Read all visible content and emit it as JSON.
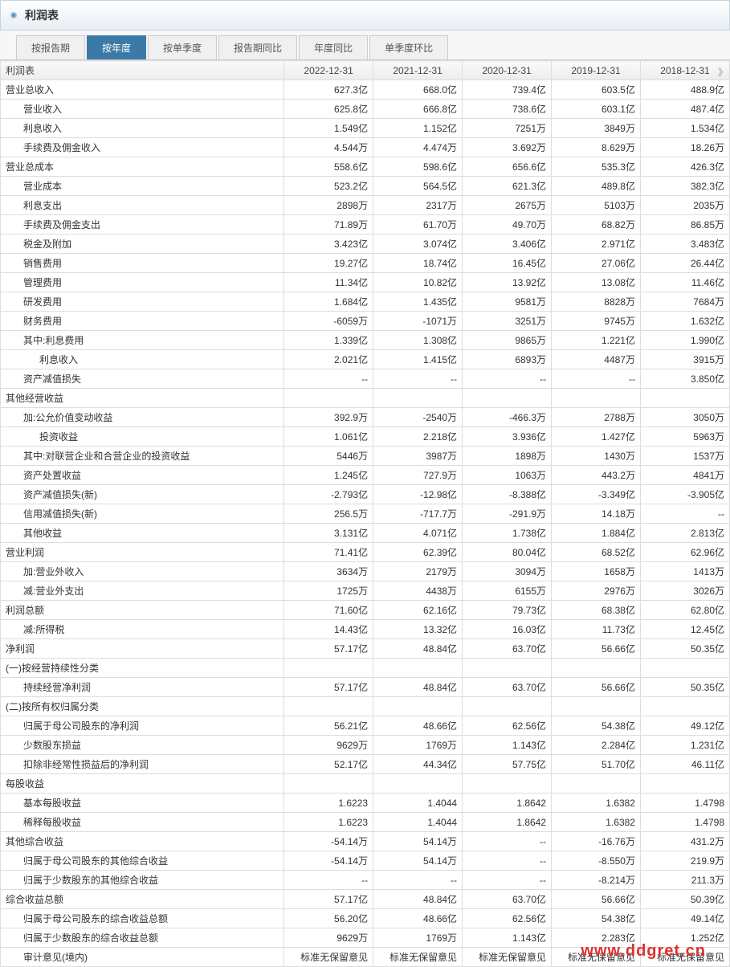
{
  "header": {
    "title": "利润表"
  },
  "tabs": [
    {
      "label": "按报告期",
      "active": false
    },
    {
      "label": "按年度",
      "active": true
    },
    {
      "label": "按单季度",
      "active": false
    },
    {
      "label": "报告期同比",
      "active": false
    },
    {
      "label": "年度同比",
      "active": false
    },
    {
      "label": "单季度环比",
      "active": false
    }
  ],
  "table": {
    "corner": "利润表",
    "columns": [
      "2022-12-31",
      "2021-12-31",
      "2020-12-31",
      "2019-12-31",
      "2018-12-31"
    ],
    "col_width_label": 350,
    "col_width_data": 110,
    "header_bg_gradient": [
      "#fafafa",
      "#ececec"
    ],
    "border_color": "#dddddd",
    "rows": [
      {
        "label": "营业总收入",
        "indent": 0,
        "vals": [
          "627.3亿",
          "668.0亿",
          "739.4亿",
          "603.5亿",
          "488.9亿"
        ]
      },
      {
        "label": "营业收入",
        "indent": 1,
        "vals": [
          "625.8亿",
          "666.8亿",
          "738.6亿",
          "603.1亿",
          "487.4亿"
        ]
      },
      {
        "label": "利息收入",
        "indent": 1,
        "vals": [
          "1.549亿",
          "1.152亿",
          "7251万",
          "3849万",
          "1.534亿"
        ]
      },
      {
        "label": "手续费及佣金收入",
        "indent": 1,
        "vals": [
          "4.544万",
          "4.474万",
          "3.692万",
          "8.629万",
          "18.26万"
        ]
      },
      {
        "label": "营业总成本",
        "indent": 0,
        "vals": [
          "558.6亿",
          "598.6亿",
          "656.6亿",
          "535.3亿",
          "426.3亿"
        ]
      },
      {
        "label": "营业成本",
        "indent": 1,
        "vals": [
          "523.2亿",
          "564.5亿",
          "621.3亿",
          "489.8亿",
          "382.3亿"
        ]
      },
      {
        "label": "利息支出",
        "indent": 1,
        "vals": [
          "2898万",
          "2317万",
          "2675万",
          "5103万",
          "2035万"
        ]
      },
      {
        "label": "手续费及佣金支出",
        "indent": 1,
        "vals": [
          "71.89万",
          "61.70万",
          "49.70万",
          "68.82万",
          "86.85万"
        ]
      },
      {
        "label": "税金及附加",
        "indent": 1,
        "vals": [
          "3.423亿",
          "3.074亿",
          "3.406亿",
          "2.971亿",
          "3.483亿"
        ]
      },
      {
        "label": "销售费用",
        "indent": 1,
        "vals": [
          "19.27亿",
          "18.74亿",
          "16.45亿",
          "27.06亿",
          "26.44亿"
        ]
      },
      {
        "label": "管理费用",
        "indent": 1,
        "vals": [
          "11.34亿",
          "10.82亿",
          "13.92亿",
          "13.08亿",
          "11.46亿"
        ]
      },
      {
        "label": "研发费用",
        "indent": 1,
        "vals": [
          "1.684亿",
          "1.435亿",
          "9581万",
          "8828万",
          "7684万"
        ]
      },
      {
        "label": "财务费用",
        "indent": 1,
        "vals": [
          "-6059万",
          "-1071万",
          "3251万",
          "9745万",
          "1.632亿"
        ]
      },
      {
        "label": "其中:利息费用",
        "indent": 1,
        "vals": [
          "1.339亿",
          "1.308亿",
          "9865万",
          "1.221亿",
          "1.990亿"
        ]
      },
      {
        "label": "利息收入",
        "indent": 2,
        "vals": [
          "2.021亿",
          "1.415亿",
          "6893万",
          "4487万",
          "3915万"
        ]
      },
      {
        "label": "资产减值损失",
        "indent": 1,
        "vals": [
          "--",
          "--",
          "--",
          "--",
          "3.850亿"
        ]
      },
      {
        "label": "其他经营收益",
        "indent": 0,
        "vals": [
          "",
          "",
          "",
          "",
          ""
        ]
      },
      {
        "label": "加:公允价值变动收益",
        "indent": 1,
        "vals": [
          "392.9万",
          "-2540万",
          "-466.3万",
          "2788万",
          "3050万"
        ]
      },
      {
        "label": "投资收益",
        "indent": 2,
        "vals": [
          "1.061亿",
          "2.218亿",
          "3.936亿",
          "1.427亿",
          "5963万"
        ]
      },
      {
        "label": "其中:对联营企业和合营企业的投资收益",
        "indent": 1,
        "vals": [
          "5446万",
          "3987万",
          "1898万",
          "1430万",
          "1537万"
        ]
      },
      {
        "label": "资产处置收益",
        "indent": 1,
        "vals": [
          "1.245亿",
          "727.9万",
          "1063万",
          "443.2万",
          "4841万"
        ]
      },
      {
        "label": "资产减值损失(新)",
        "indent": 1,
        "vals": [
          "-2.793亿",
          "-12.98亿",
          "-8.388亿",
          "-3.349亿",
          "-3.905亿"
        ]
      },
      {
        "label": "信用减值损失(新)",
        "indent": 1,
        "vals": [
          "256.5万",
          "-717.7万",
          "-291.9万",
          "14.18万",
          "--"
        ]
      },
      {
        "label": "其他收益",
        "indent": 1,
        "vals": [
          "3.131亿",
          "4.071亿",
          "1.738亿",
          "1.884亿",
          "2.813亿"
        ]
      },
      {
        "label": "营业利润",
        "indent": 0,
        "vals": [
          "71.41亿",
          "62.39亿",
          "80.04亿",
          "68.52亿",
          "62.96亿"
        ]
      },
      {
        "label": "加:营业外收入",
        "indent": 1,
        "vals": [
          "3634万",
          "2179万",
          "3094万",
          "1658万",
          "1413万"
        ]
      },
      {
        "label": "减:营业外支出",
        "indent": 1,
        "vals": [
          "1725万",
          "4438万",
          "6155万",
          "2976万",
          "3026万"
        ]
      },
      {
        "label": "利润总额",
        "indent": 0,
        "vals": [
          "71.60亿",
          "62.16亿",
          "79.73亿",
          "68.38亿",
          "62.80亿"
        ]
      },
      {
        "label": "减:所得税",
        "indent": 1,
        "vals": [
          "14.43亿",
          "13.32亿",
          "16.03亿",
          "11.73亿",
          "12.45亿"
        ]
      },
      {
        "label": "净利润",
        "indent": 0,
        "vals": [
          "57.17亿",
          "48.84亿",
          "63.70亿",
          "56.66亿",
          "50.35亿"
        ]
      },
      {
        "label": "(一)按经营持续性分类",
        "indent": 0,
        "vals": [
          "",
          "",
          "",
          "",
          ""
        ]
      },
      {
        "label": "持续经营净利润",
        "indent": 1,
        "vals": [
          "57.17亿",
          "48.84亿",
          "63.70亿",
          "56.66亿",
          "50.35亿"
        ]
      },
      {
        "label": "(二)按所有权归属分类",
        "indent": 0,
        "vals": [
          "",
          "",
          "",
          "",
          ""
        ]
      },
      {
        "label": "归属于母公司股东的净利润",
        "indent": 1,
        "vals": [
          "56.21亿",
          "48.66亿",
          "62.56亿",
          "54.38亿",
          "49.12亿"
        ]
      },
      {
        "label": "少数股东损益",
        "indent": 1,
        "vals": [
          "9629万",
          "1769万",
          "1.143亿",
          "2.284亿",
          "1.231亿"
        ]
      },
      {
        "label": "扣除非经常性损益后的净利润",
        "indent": 1,
        "vals": [
          "52.17亿",
          "44.34亿",
          "57.75亿",
          "51.70亿",
          "46.11亿"
        ]
      },
      {
        "label": "每股收益",
        "indent": 0,
        "vals": [
          "",
          "",
          "",
          "",
          ""
        ]
      },
      {
        "label": "基本每股收益",
        "indent": 1,
        "vals": [
          "1.6223",
          "1.4044",
          "1.8642",
          "1.6382",
          "1.4798"
        ]
      },
      {
        "label": "稀释每股收益",
        "indent": 1,
        "vals": [
          "1.6223",
          "1.4044",
          "1.8642",
          "1.6382",
          "1.4798"
        ]
      },
      {
        "label": "其他综合收益",
        "indent": 0,
        "vals": [
          "-54.14万",
          "54.14万",
          "--",
          "-16.76万",
          "431.2万"
        ]
      },
      {
        "label": "归属于母公司股东的其他综合收益",
        "indent": 1,
        "vals": [
          "-54.14万",
          "54.14万",
          "--",
          "-8.550万",
          "219.9万"
        ]
      },
      {
        "label": "归属于少数股东的其他综合收益",
        "indent": 1,
        "vals": [
          "--",
          "--",
          "--",
          "-8.214万",
          "211.3万"
        ]
      },
      {
        "label": "综合收益总额",
        "indent": 0,
        "vals": [
          "57.17亿",
          "48.84亿",
          "63.70亿",
          "56.66亿",
          "50.39亿"
        ]
      },
      {
        "label": "归属于母公司股东的综合收益总额",
        "indent": 1,
        "vals": [
          "56.20亿",
          "48.66亿",
          "62.56亿",
          "54.38亿",
          "49.14亿"
        ]
      },
      {
        "label": "归属于少数股东的综合收益总额",
        "indent": 1,
        "vals": [
          "9629万",
          "1769万",
          "1.143亿",
          "2.283亿",
          "1.252亿"
        ]
      },
      {
        "label": "审计意见(境内)",
        "indent": 1,
        "vals": [
          "标准无保留意见",
          "标准无保留意见",
          "标准无保留意见",
          "标准无保留意见",
          "标准无保留意见"
        ]
      }
    ]
  },
  "watermark": "www.ddgret.cn",
  "colors": {
    "header_grad_top": "#ffffff",
    "header_grad_bottom": "#e8eef4",
    "header_border": "#c5d4e0",
    "tab_active_bg": "#3b7aa6",
    "tab_inactive_bg": "#f0f0f0",
    "watermark": "#e03030"
  }
}
